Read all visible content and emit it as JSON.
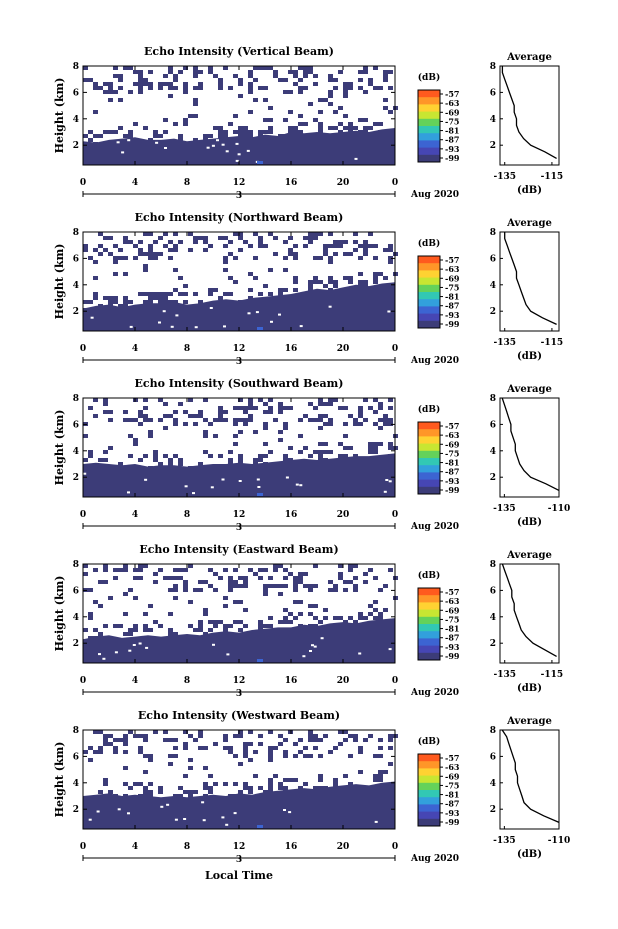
{
  "figure": {
    "xlabel": "Local Time",
    "panels": [
      {
        "title": "Echo Intensity (Vertical Beam)",
        "profile_xticks": [
          "-135",
          "-115"
        ]
      },
      {
        "title": "Echo Intensity (Northward Beam)",
        "profile_xticks": [
          "-135",
          "-115"
        ]
      },
      {
        "title": "Echo Intensity (Southward Beam)",
        "profile_xticks": [
          "-135",
          "-110"
        ]
      },
      {
        "title": "Echo Intensity (Eastward Beam)",
        "profile_xticks": [
          "-135",
          "-115"
        ]
      },
      {
        "title": "Echo Intensity (Westward Beam)",
        "profile_xticks": [
          "-135",
          "-110"
        ]
      }
    ],
    "ylabel": "Height (km)",
    "yticks": [
      "2",
      "4",
      "6",
      "8"
    ],
    "xticks": [
      "0",
      "4",
      "8",
      "12",
      "16",
      "20",
      "0"
    ],
    "date_day": "3",
    "date_label": "Aug 2020",
    "colorbar": {
      "unit_label": "(dB)",
      "tick_labels": [
        "-57",
        "-63",
        "-69",
        "-75",
        "-81",
        "-87",
        "-93",
        "-99"
      ],
      "colors": [
        "#FF5A1E",
        "#FF9628",
        "#FFD232",
        "#C8E632",
        "#64D25A",
        "#32C8B4",
        "#32A0DC",
        "#3C64D2",
        "#4646B4",
        "#3C3C78"
      ]
    },
    "profile_title": "Average",
    "profile_xlabel": "(dB)",
    "profile_yticks": [
      "2",
      "4",
      "6",
      "8"
    ],
    "fill_color": "#3C3C78"
  },
  "chart_data": [
    {
      "type": "heatmap",
      "title": "Echo Intensity (Vertical Beam)",
      "xlabel": "",
      "ylabel": "Height (km)",
      "xlim": [
        0,
        24
      ],
      "ylim": [
        0.5,
        8
      ],
      "solid_fill_top_km": [
        2.3,
        2.2,
        2.4,
        2.5,
        2.6,
        2.4,
        2.4,
        2.5,
        2.3,
        2.4,
        2.5,
        2.6,
        2.7,
        2.6,
        2.8,
        2.7,
        3.0,
        2.9,
        3.0,
        2.9,
        3.0,
        3.1,
        3.0,
        3.2,
        3.3
      ],
      "profile": {
        "title": "Average",
        "xlabel": "(dB)",
        "xlim": [
          -137,
          -112
        ],
        "heights_km": [
          1.0,
          1.5,
          2.0,
          2.5,
          3.0,
          3.5,
          4.0,
          4.5,
          5.0,
          5.5,
          6.0,
          6.5,
          7.0,
          7.5,
          8.0
        ],
        "values_db": [
          -113,
          -118,
          -124,
          -127,
          -129,
          -130,
          -130,
          -131,
          -131,
          -132,
          -133,
          -134,
          -135,
          -136,
          -136
        ]
      }
    },
    {
      "type": "heatmap",
      "title": "Echo Intensity (Northward Beam)",
      "xlabel": "",
      "ylabel": "Height (km)",
      "xlim": [
        0,
        24
      ],
      "ylim": [
        0.5,
        8
      ],
      "solid_fill_top_km": [
        2.2,
        2.4,
        2.5,
        2.3,
        2.5,
        2.6,
        2.6,
        2.7,
        2.5,
        2.6,
        2.8,
        2.9,
        2.8,
        3.0,
        3.1,
        3.2,
        3.3,
        3.5,
        3.7,
        3.6,
        3.8,
        4.0,
        3.9,
        4.1,
        4.2
      ],
      "profile": {
        "title": "Average",
        "xlabel": "(dB)",
        "xlim": [
          -137,
          -112
        ],
        "heights_km": [
          1.0,
          1.5,
          2.0,
          2.5,
          3.0,
          3.5,
          4.0,
          4.5,
          5.0,
          5.5,
          6.0,
          6.5,
          7.0,
          7.5,
          8.0
        ],
        "values_db": [
          -113,
          -119,
          -124,
          -126,
          -127,
          -128,
          -129,
          -130,
          -130,
          -131,
          -132,
          -133,
          -134,
          -135,
          -135
        ]
      }
    },
    {
      "type": "heatmap",
      "title": "Echo Intensity (Southward Beam)",
      "xlabel": "",
      "ylabel": "Height (km)",
      "xlim": [
        0,
        24
      ],
      "ylim": [
        0.5,
        8
      ],
      "solid_fill_top_km": [
        3.0,
        3.1,
        3.0,
        2.9,
        3.0,
        2.8,
        2.9,
        2.9,
        2.8,
        2.9,
        3.0,
        3.0,
        3.1,
        3.0,
        3.1,
        3.2,
        3.3,
        3.4,
        3.3,
        3.4,
        3.5,
        3.6,
        3.6,
        3.7,
        3.8
      ],
      "profile": {
        "title": "Average",
        "xlabel": "(dB)",
        "xlim": [
          -137,
          -110
        ],
        "heights_km": [
          1.0,
          1.5,
          2.0,
          2.5,
          3.0,
          3.5,
          4.0,
          4.5,
          5.0,
          5.5,
          6.0,
          6.5,
          7.0,
          7.5,
          8.0
        ],
        "values_db": [
          -110,
          -116,
          -123,
          -126,
          -128,
          -129,
          -130,
          -130,
          -131,
          -132,
          -132,
          -133,
          -134,
          -135,
          -136
        ]
      }
    },
    {
      "type": "heatmap",
      "title": "Echo Intensity (Eastward Beam)",
      "xlabel": "",
      "ylabel": "Height (km)",
      "xlim": [
        0,
        24
      ],
      "ylim": [
        0.5,
        8
      ],
      "solid_fill_top_km": [
        2.3,
        2.5,
        2.6,
        2.4,
        2.5,
        2.6,
        2.5,
        2.6,
        2.7,
        2.6,
        2.8,
        2.9,
        2.8,
        3.0,
        3.1,
        3.2,
        3.2,
        3.4,
        3.3,
        3.5,
        3.6,
        3.5,
        3.7,
        3.8,
        3.9
      ],
      "profile": {
        "title": "Average",
        "xlabel": "(dB)",
        "xlim": [
          -137,
          -112
        ],
        "heights_km": [
          1.0,
          1.5,
          2.0,
          2.5,
          3.0,
          3.5,
          4.0,
          4.5,
          5.0,
          5.5,
          6.0,
          6.5,
          7.0,
          7.5,
          8.0
        ],
        "values_db": [
          -113,
          -118,
          -123,
          -126,
          -128,
          -129,
          -130,
          -131,
          -131,
          -132,
          -132,
          -133,
          -134,
          -135,
          -136
        ]
      }
    },
    {
      "type": "heatmap",
      "title": "Echo Intensity (Westward Beam)",
      "xlabel": "Local Time",
      "ylabel": "Height (km)",
      "xlim": [
        0,
        24
      ],
      "ylim": [
        0.5,
        8
      ],
      "solid_fill_top_km": [
        3.0,
        3.1,
        3.2,
        3.0,
        3.1,
        3.0,
        2.9,
        3.0,
        2.9,
        3.0,
        3.1,
        3.0,
        3.2,
        3.1,
        3.3,
        3.4,
        3.5,
        3.6,
        3.5,
        3.7,
        3.8,
        3.9,
        3.8,
        4.0,
        4.1
      ],
      "profile": {
        "title": "Average",
        "xlabel": "(dB)",
        "xlim": [
          -137,
          -110
        ],
        "heights_km": [
          1.0,
          1.5,
          2.0,
          2.5,
          3.0,
          3.5,
          4.0,
          4.5,
          5.0,
          5.5,
          6.0,
          6.5,
          7.0,
          7.5,
          8.0
        ],
        "values_db": [
          -110,
          -117,
          -123,
          -126,
          -127,
          -128,
          -129,
          -129,
          -130,
          -130,
          -131,
          -132,
          -133,
          -134,
          -136
        ]
      }
    }
  ]
}
